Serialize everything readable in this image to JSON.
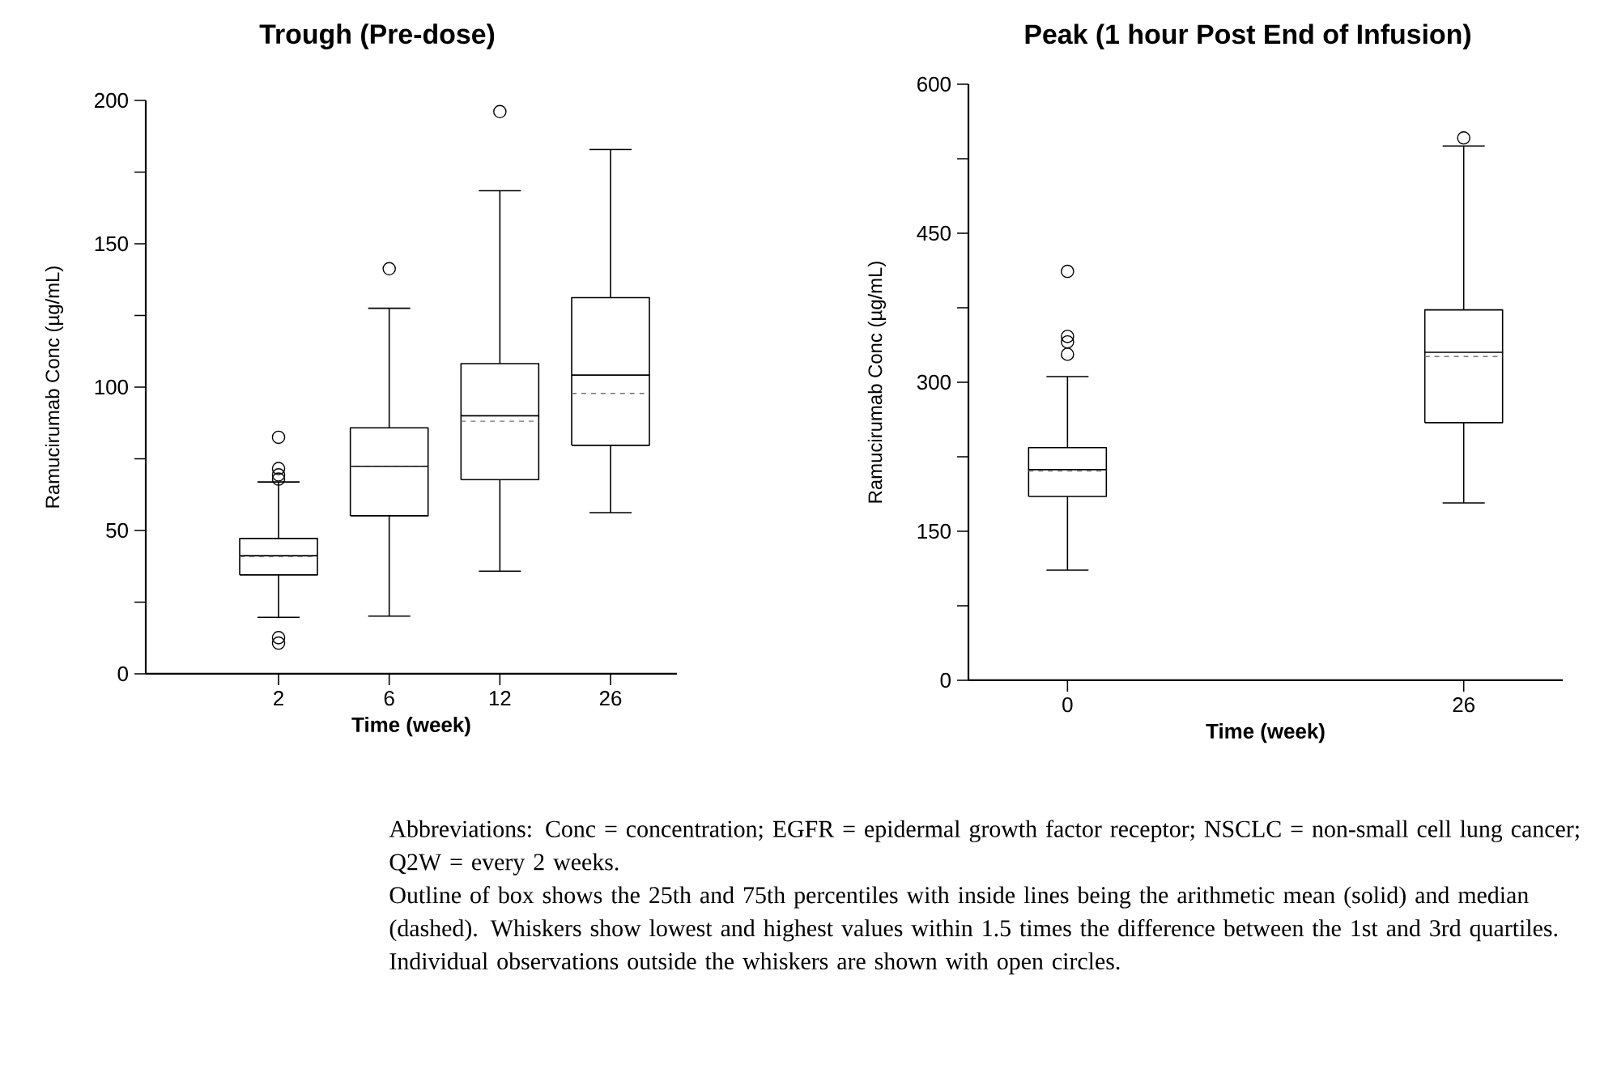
{
  "chart_data": [
    {
      "type": "box",
      "title": "Trough (Pre-dose)",
      "xlabel": "Time (week)",
      "ylabel": "Ramucirumab Conc (µg/mL)",
      "categories": [
        "2",
        "6",
        "12",
        "26"
      ],
      "ylim": [
        0,
        200
      ],
      "yticks": [
        0,
        {
          "value": 25,
          "label": null
        },
        50,
        {
          "value": 75,
          "label": null
        },
        100,
        {
          "value": 125,
          "label": null
        },
        150,
        {
          "value": 175,
          "label": null
        },
        200
      ],
      "boxes": [
        {
          "low": 19.7,
          "q1": 34.5,
          "median": 40.9,
          "q3": 47.2,
          "high": 66.9,
          "mean": 41.2,
          "outliers": [
            82.5,
            71.6,
            69.4,
            67.9,
            12.6,
            10.7
          ]
        },
        {
          "low": 20.1,
          "q1": 55.1,
          "median": 72.2,
          "q3": 85.8,
          "high": 127.5,
          "mean": 72.4,
          "outliers": [
            141.3
          ]
        },
        {
          "low": 35.8,
          "q1": 67.7,
          "median": 88.1,
          "q3": 108.2,
          "high": 168.5,
          "mean": 90.0,
          "outliers": [
            196.1
          ]
        },
        {
          "low": 56.2,
          "q1": 79.7,
          "median": 97.8,
          "q3": 131.2,
          "high": 182.9,
          "mean": 104.2
        }
      ]
    },
    {
      "type": "box",
      "title": "Peak (1 hour Post End of Infusion)",
      "xlabel": "Time (week)",
      "ylabel": "Ramucirumab Conc (µg/mL)",
      "categories": [
        "0",
        "26"
      ],
      "ylim": [
        0,
        600
      ],
      "yticks": [
        0,
        {
          "value": 75,
          "label": null
        },
        150,
        {
          "value": 225,
          "label": null
        },
        300,
        {
          "value": 375,
          "label": null
        },
        450,
        {
          "value": 525,
          "label": null
        },
        600
      ],
      "boxes": [
        {
          "low": 110.8,
          "q1": 185.0,
          "median": 210.7,
          "q3": 234.2,
          "high": 305.7,
          "mean": 212.0,
          "outliers": [
            411.6,
            346.1,
            340.6,
            328.1
          ]
        },
        {
          "low": 178.5,
          "q1": 259.3,
          "median": 325.9,
          "q3": 372.8,
          "high": 537.8,
          "mean": 330.2,
          "outliers": [
            545.9
          ]
        }
      ],
      "annotations": [
        "Abbreviations:  Conc = concentration; EGFR = epidermal growth factor receptor; NSCLC = non-small cell lung cancer; Q2W = every 2 weeks.",
        "Outline of box shows the 25th and 75th percentiles with inside lines being the arithmetic mean (solid) and median (dashed).  Whiskers show lowest and highest values within 1.5 times the difference between the 1st and 3rd quartiles.  Individual observations outside the whiskers are shown with open circles."
      ]
    }
  ]
}
